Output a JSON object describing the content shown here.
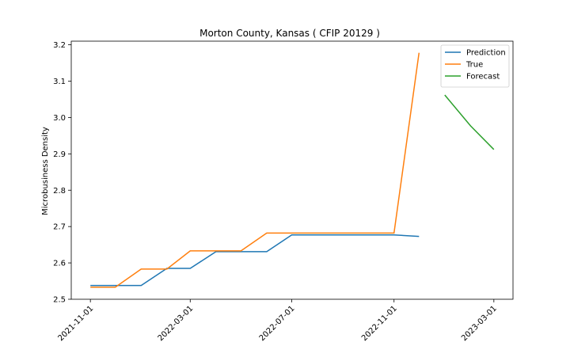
{
  "chart_data": {
    "type": "line",
    "title": "Morton County, Kansas ( CFIP 20129 )",
    "xlabel": "",
    "ylabel": "Microbusiness Density",
    "x_ticks": [
      "2021-11-01",
      "2022-03-01",
      "2022-07-01",
      "2022-11-01",
      "2023-03-01"
    ],
    "y_ticks": [
      "2.5",
      "2.6",
      "2.7",
      "2.8",
      "2.9",
      "3.0",
      "3.1",
      "3.2"
    ],
    "ylim": [
      2.5,
      3.21
    ],
    "xlim": [
      "2021-10-09",
      "2023-03-24"
    ],
    "legend_position": "top-right",
    "grid": false,
    "series": [
      {
        "name": "Prediction",
        "color": "#1f77b4",
        "x": [
          "2021-11-01",
          "2021-12-01",
          "2022-01-01",
          "2022-02-01",
          "2022-03-01",
          "2022-04-01",
          "2022-05-01",
          "2022-06-01",
          "2022-07-01",
          "2022-08-01",
          "2022-09-01",
          "2022-10-01",
          "2022-11-01",
          "2022-12-01"
        ],
        "y": [
          2.538,
          2.538,
          2.538,
          2.585,
          2.585,
          2.631,
          2.631,
          2.631,
          2.677,
          2.677,
          2.677,
          2.677,
          2.677,
          2.673
        ]
      },
      {
        "name": "True",
        "color": "#ff7f0e",
        "x": [
          "2021-11-01",
          "2021-12-01",
          "2022-01-01",
          "2022-02-01",
          "2022-03-01",
          "2022-04-01",
          "2022-05-01",
          "2022-06-01",
          "2022-07-01",
          "2022-08-01",
          "2022-09-01",
          "2022-10-01",
          "2022-11-01",
          "2022-12-01"
        ],
        "y": [
          2.533,
          2.533,
          2.583,
          2.583,
          2.633,
          2.633,
          2.633,
          2.682,
          2.682,
          2.682,
          2.682,
          2.682,
          2.682,
          3.178
        ]
      },
      {
        "name": "Forecast",
        "color": "#2ca02c",
        "x": [
          "2023-01-01",
          "2023-02-01",
          "2023-03-01"
        ],
        "y": [
          3.062,
          2.977,
          2.912
        ]
      }
    ]
  }
}
